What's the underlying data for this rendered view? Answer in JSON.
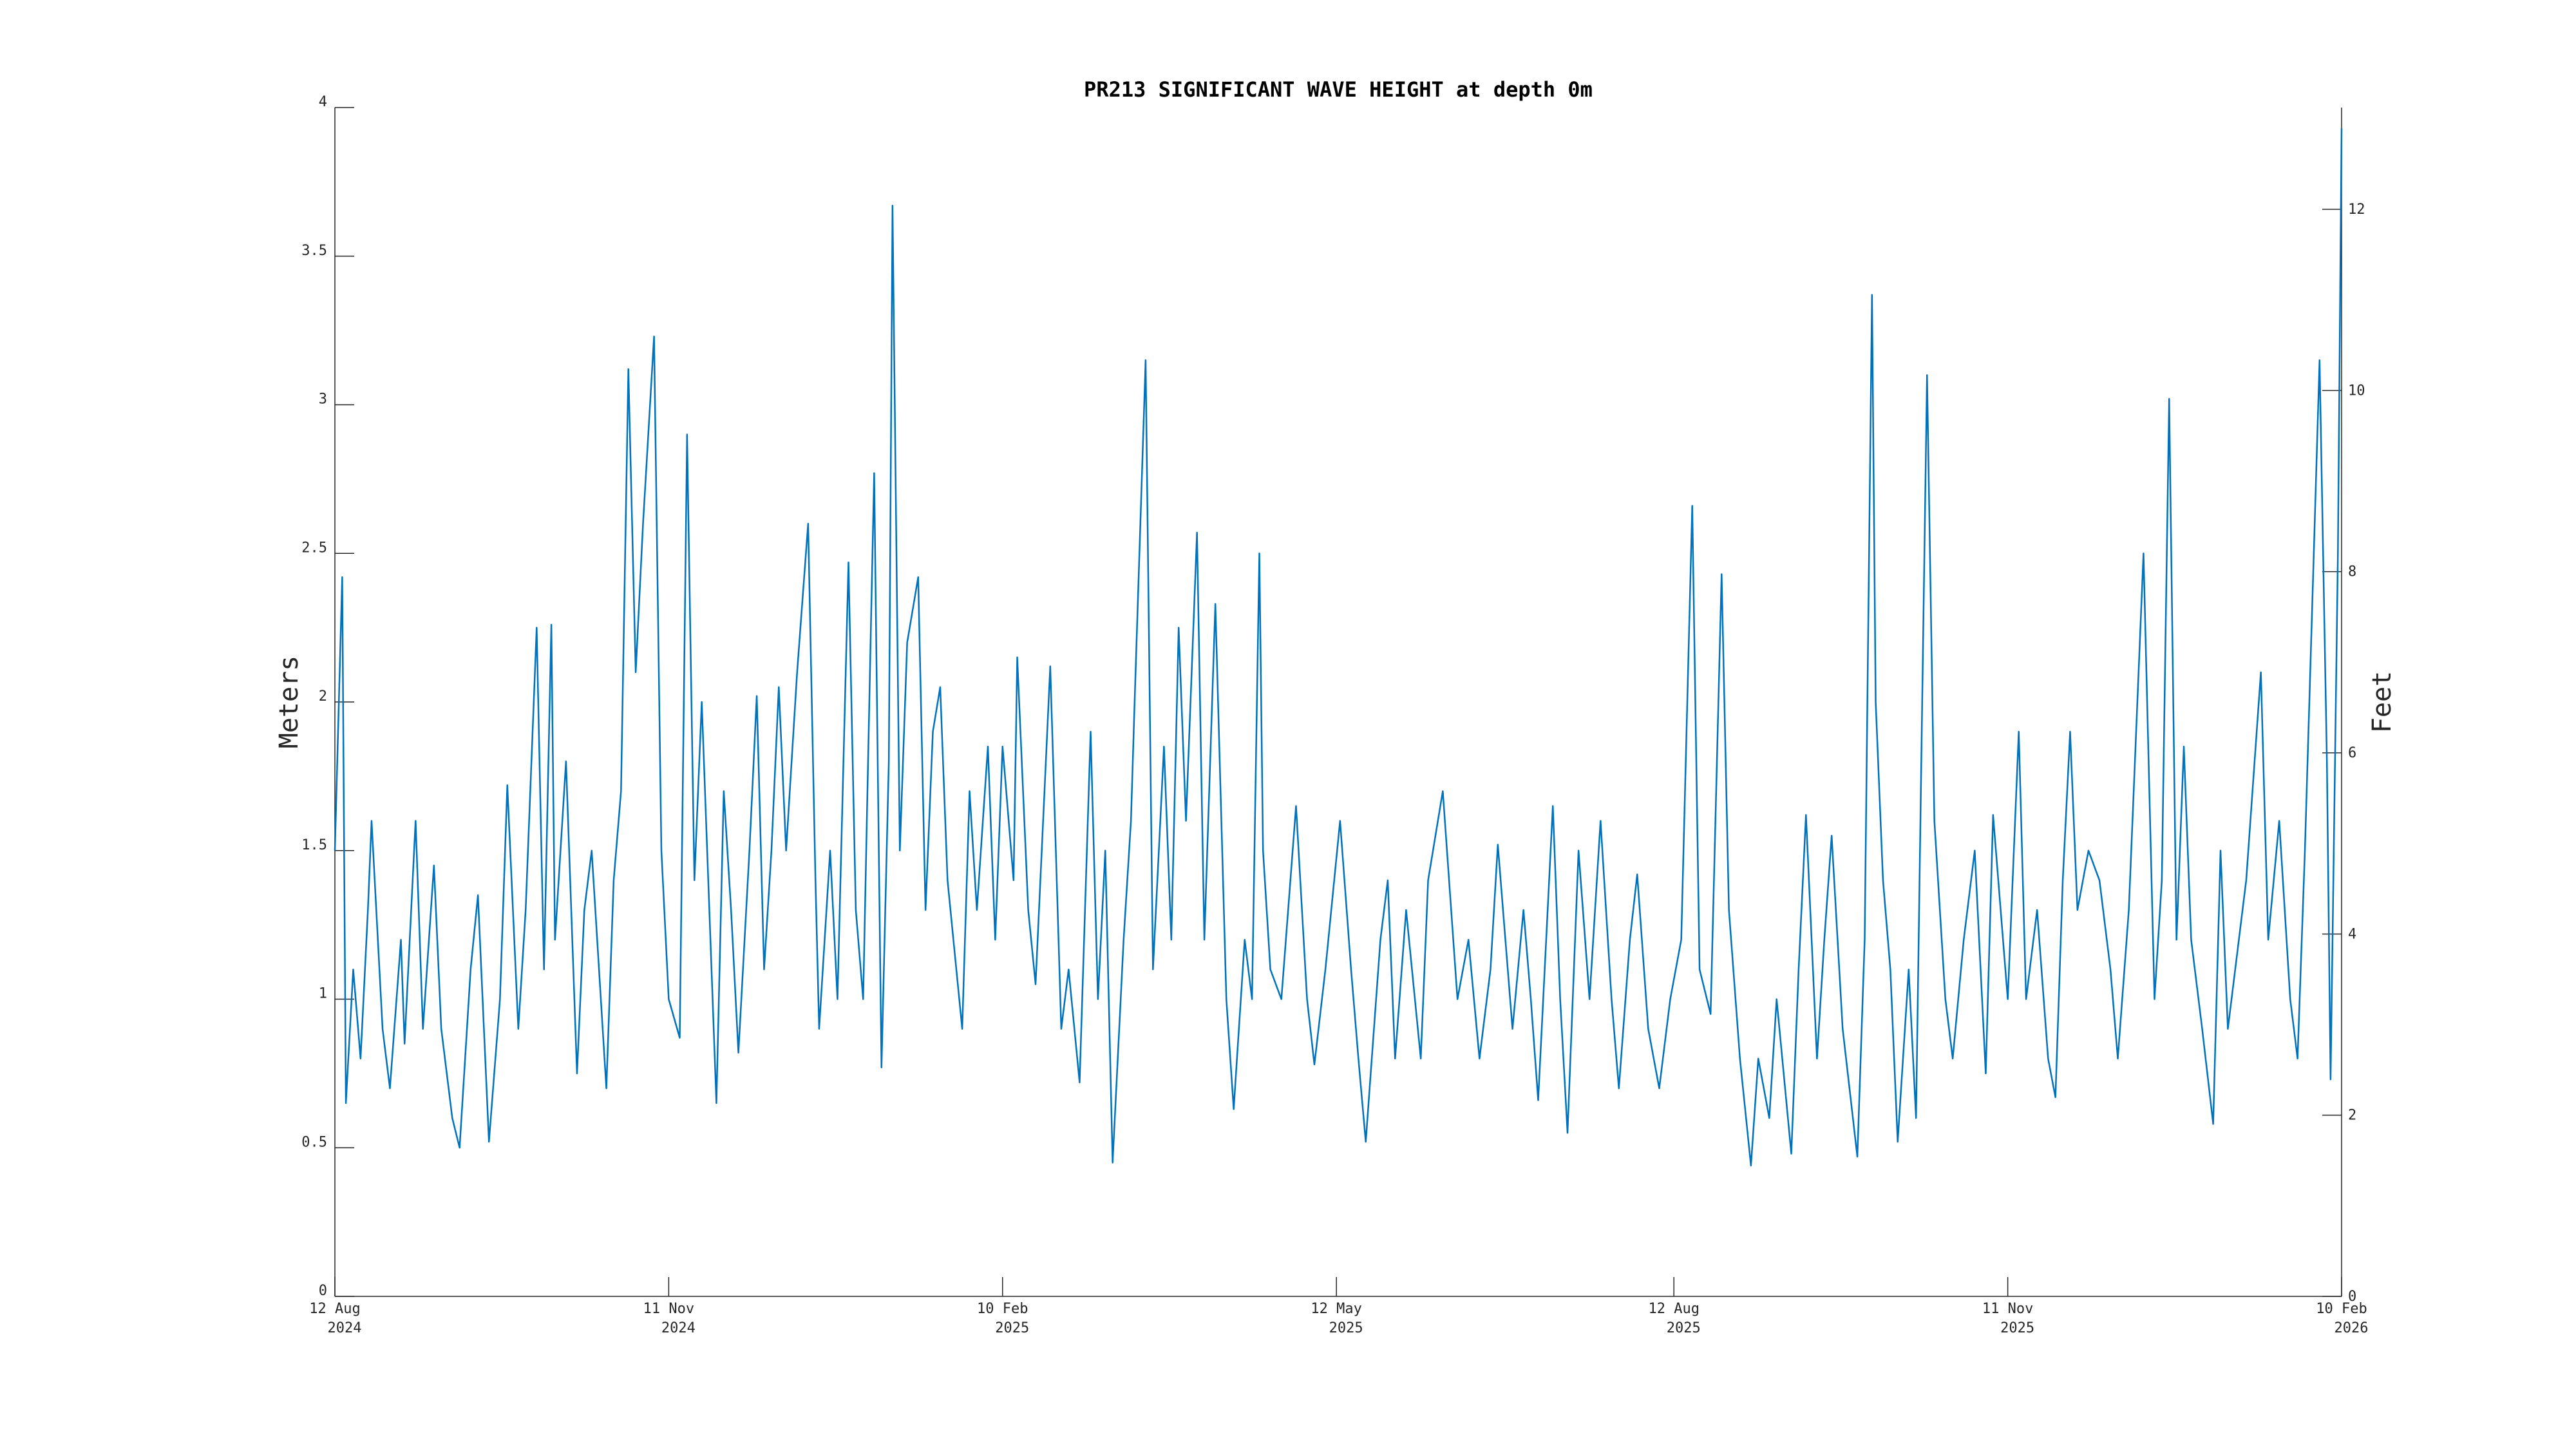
{
  "chart_data": {
    "type": "line",
    "title": "PR213 SIGNIFICANT WAVE HEIGHT at depth 0m",
    "ylabel": "Meters",
    "y2label": "Feet",
    "color": "#0072bd",
    "xlim": [
      "2024-08-12",
      "2026-02-10"
    ],
    "xticks": [
      {
        "value": "2024-08-12",
        "label": [
          "12 Aug",
          "2024"
        ]
      },
      {
        "value": "2024-11-11",
        "label": [
          "11 Nov",
          "2024"
        ]
      },
      {
        "value": "2025-02-10",
        "label": [
          "10 Feb",
          "2025"
        ]
      },
      {
        "value": "2025-05-12",
        "label": [
          "12 May",
          "2025"
        ]
      },
      {
        "value": "2025-08-12",
        "label": [
          "12 Aug",
          "2025"
        ]
      },
      {
        "value": "2025-11-11",
        "label": [
          "11 Nov",
          "2025"
        ]
      },
      {
        "value": "2026-02-10",
        "label": [
          "10 Feb",
          "2026"
        ]
      }
    ],
    "ylim": [
      0,
      4
    ],
    "yticks": [
      0,
      0.5,
      1,
      1.5,
      2,
      2.5,
      3,
      3.5,
      4
    ],
    "y2lim": [
      0,
      13.1234
    ],
    "y2ticks": [
      0,
      2,
      4,
      6,
      8,
      10,
      12
    ],
    "x": [
      "2024-08-12",
      "2024-08-14",
      "2024-08-15",
      "2024-08-17",
      "2024-08-19",
      "2024-08-21",
      "2024-08-22",
      "2024-08-25",
      "2024-08-27",
      "2024-08-30",
      "2024-08-31",
      "2024-09-03",
      "2024-09-05",
      "2024-09-08",
      "2024-09-10",
      "2024-09-13",
      "2024-09-15",
      "2024-09-18",
      "2024-09-20",
      "2024-09-23",
      "2024-09-26",
      "2024-09-28",
      "2024-10-01",
      "2024-10-03",
      "2024-10-06",
      "2024-10-08",
      "2024-10-10",
      "2024-10-11",
      "2024-10-14",
      "2024-10-17",
      "2024-10-19",
      "2024-10-21",
      "2024-10-25",
      "2024-10-27",
      "2024-10-29",
      "2024-10-31",
      "2024-11-02",
      "2024-11-04",
      "2024-11-07",
      "2024-11-09",
      "2024-11-11",
      "2024-11-14",
      "2024-11-16",
      "2024-11-18",
      "2024-11-20",
      "2024-11-24",
      "2024-11-26",
      "2024-11-28",
      "2024-11-30",
      "2024-12-03",
      "2024-12-05",
      "2024-12-07",
      "2024-12-09",
      "2024-12-11",
      "2024-12-13",
      "2024-12-16",
      "2024-12-19",
      "2024-12-21",
      "2024-12-22",
      "2024-12-25",
      "2024-12-27",
      "2024-12-30",
      "2025-01-01",
      "2025-01-03",
      "2025-01-04",
      "2025-01-06",
      "2025-01-08",
      "2025-01-10",
      "2025-01-11",
      "2025-01-13",
      "2025-01-15",
      "2025-01-18",
      "2025-01-20",
      "2025-01-22",
      "2025-01-24",
      "2025-01-26",
      "2025-01-30",
      "2025-02-01",
      "2025-02-03",
      "2025-02-06",
      "2025-02-08",
      "2025-02-10",
      "2025-02-13",
      "2025-02-14",
      "2025-02-17",
      "2025-02-19",
      "2025-02-23",
      "2025-02-26",
      "2025-02-28",
      "2025-03-03",
      "2025-03-06",
      "2025-03-08",
      "2025-03-10",
      "2025-03-12",
      "2025-03-15",
      "2025-03-17",
      "2025-03-18",
      "2025-03-21",
      "2025-03-23",
      "2025-03-26",
      "2025-03-28",
      "2025-03-30",
      "2025-04-01",
      "2025-04-04",
      "2025-04-06",
      "2025-04-09",
      "2025-04-12",
      "2025-04-14",
      "2025-04-17",
      "2025-04-19",
      "2025-04-21",
      "2025-04-22",
      "2025-04-24",
      "2025-04-27",
      "2025-05-01",
      "2025-05-04",
      "2025-05-06",
      "2025-05-09",
      "2025-05-13",
      "2025-05-16",
      "2025-05-18",
      "2025-05-20",
      "2025-05-24",
      "2025-05-26",
      "2025-05-28",
      "2025-05-31",
      "2025-06-04",
      "2025-06-06",
      "2025-06-10",
      "2025-06-14",
      "2025-06-17",
      "2025-06-20",
      "2025-06-23",
      "2025-06-25",
      "2025-06-29",
      "2025-07-02",
      "2025-07-04",
      "2025-07-06",
      "2025-07-10",
      "2025-07-12",
      "2025-07-14",
      "2025-07-17",
      "2025-07-20",
      "2025-07-23",
      "2025-07-26",
      "2025-07-28",
      "2025-07-31",
      "2025-08-02",
      "2025-08-05",
      "2025-08-08",
      "2025-08-11",
      "2025-08-14",
      "2025-08-17",
      "2025-08-19",
      "2025-08-22",
      "2025-08-25",
      "2025-08-27",
      "2025-08-30",
      "2025-09-02",
      "2025-09-04",
      "2025-09-07",
      "2025-09-09",
      "2025-09-13",
      "2025-09-15",
      "2025-09-17",
      "2025-09-20",
      "2025-09-22",
      "2025-09-24",
      "2025-09-27",
      "2025-10-01",
      "2025-10-03",
      "2025-10-05",
      "2025-10-06",
      "2025-10-08",
      "2025-10-10",
      "2025-10-12",
      "2025-10-15",
      "2025-10-17",
      "2025-10-20",
      "2025-10-22",
      "2025-10-25",
      "2025-10-27",
      "2025-10-30",
      "2025-11-02",
      "2025-11-05",
      "2025-11-07",
      "2025-11-11",
      "2025-11-14",
      "2025-11-16",
      "2025-11-19",
      "2025-11-22",
      "2025-11-24",
      "2025-11-26",
      "2025-11-28",
      "2025-11-30",
      "2025-12-03",
      "2025-12-06",
      "2025-12-09",
      "2025-12-11",
      "2025-12-14",
      "2025-12-18",
      "2025-12-21",
      "2025-12-23",
      "2025-12-25",
      "2025-12-27",
      "2025-12-29",
      "2025-12-31",
      "2026-01-03",
      "2026-01-06",
      "2026-01-08",
      "2026-01-10",
      "2026-01-13",
      "2026-01-15",
      "2026-01-19",
      "2026-01-21",
      "2026-01-24",
      "2026-01-27",
      "2026-01-29",
      "2026-01-31",
      "2026-02-04",
      "2026-02-06",
      "2026-02-07",
      "2026-02-09",
      "2026-02-10"
    ],
    "values": [
      1.5,
      2.42,
      0.65,
      1.1,
      0.8,
      1.3,
      1.6,
      0.9,
      0.7,
      1.2,
      0.85,
      1.6,
      0.9,
      1.45,
      0.9,
      0.6,
      0.5,
      1.1,
      1.35,
      0.52,
      1.0,
      1.72,
      0.9,
      1.3,
      2.25,
      1.1,
      2.26,
      1.2,
      1.8,
      0.75,
      1.3,
      1.5,
      0.7,
      1.4,
      1.7,
      3.12,
      2.1,
      2.6,
      3.23,
      1.5,
      1.0,
      0.87,
      2.9,
      1.4,
      2.0,
      0.65,
      1.7,
      1.3,
      0.82,
      1.5,
      2.02,
      1.1,
      1.5,
      2.05,
      1.5,
      2.1,
      2.6,
      1.4,
      0.9,
      1.5,
      1.0,
      2.47,
      1.3,
      1.0,
      1.6,
      2.77,
      0.77,
      1.8,
      3.67,
      1.5,
      2.2,
      2.42,
      1.3,
      1.9,
      2.05,
      1.4,
      0.9,
      1.7,
      1.3,
      1.85,
      1.2,
      1.85,
      1.4,
      2.15,
      1.3,
      1.05,
      2.12,
      0.9,
      1.1,
      0.72,
      1.9,
      1.0,
      1.5,
      0.45,
      1.2,
      1.6,
      2.0,
      3.15,
      1.1,
      1.85,
      1.2,
      2.25,
      1.6,
      2.57,
      1.2,
      2.33,
      1.0,
      0.63,
      1.2,
      1.0,
      2.5,
      1.5,
      1.1,
      1.0,
      1.65,
      1.0,
      0.78,
      1.1,
      1.6,
      1.1,
      0.8,
      0.52,
      1.2,
      1.4,
      0.8,
      1.3,
      0.8,
      1.4,
      1.7,
      1.0,
      1.2,
      0.8,
      1.1,
      1.52,
      0.9,
      1.3,
      1.0,
      0.66,
      1.65,
      1.0,
      0.55,
      1.5,
      1.0,
      1.6,
      1.0,
      0.7,
      1.2,
      1.42,
      0.9,
      0.7,
      1.0,
      1.2,
      2.66,
      1.1,
      0.95,
      2.43,
      1.3,
      0.8,
      0.44,
      0.8,
      0.6,
      1.0,
      0.48,
      1.1,
      1.62,
      0.8,
      1.2,
      1.55,
      0.9,
      0.47,
      1.2,
      3.37,
      2.0,
      1.4,
      1.1,
      0.52,
      1.1,
      0.6,
      3.1,
      1.6,
      1.0,
      0.8,
      1.2,
      1.5,
      0.75,
      1.62,
      1.0,
      1.9,
      1.0,
      1.3,
      0.8,
      0.67,
      1.4,
      1.9,
      1.3,
      1.5,
      1.4,
      1.1,
      0.8,
      1.3,
      2.5,
      1.0,
      1.4,
      3.02,
      1.2,
      1.85,
      1.2,
      0.9,
      0.58,
      1.5,
      0.9,
      1.2,
      1.4,
      2.1,
      1.2,
      1.6,
      1.0,
      0.8,
      1.5,
      3.15,
      1.8,
      0.73,
      2.5,
      3.93
    ]
  }
}
